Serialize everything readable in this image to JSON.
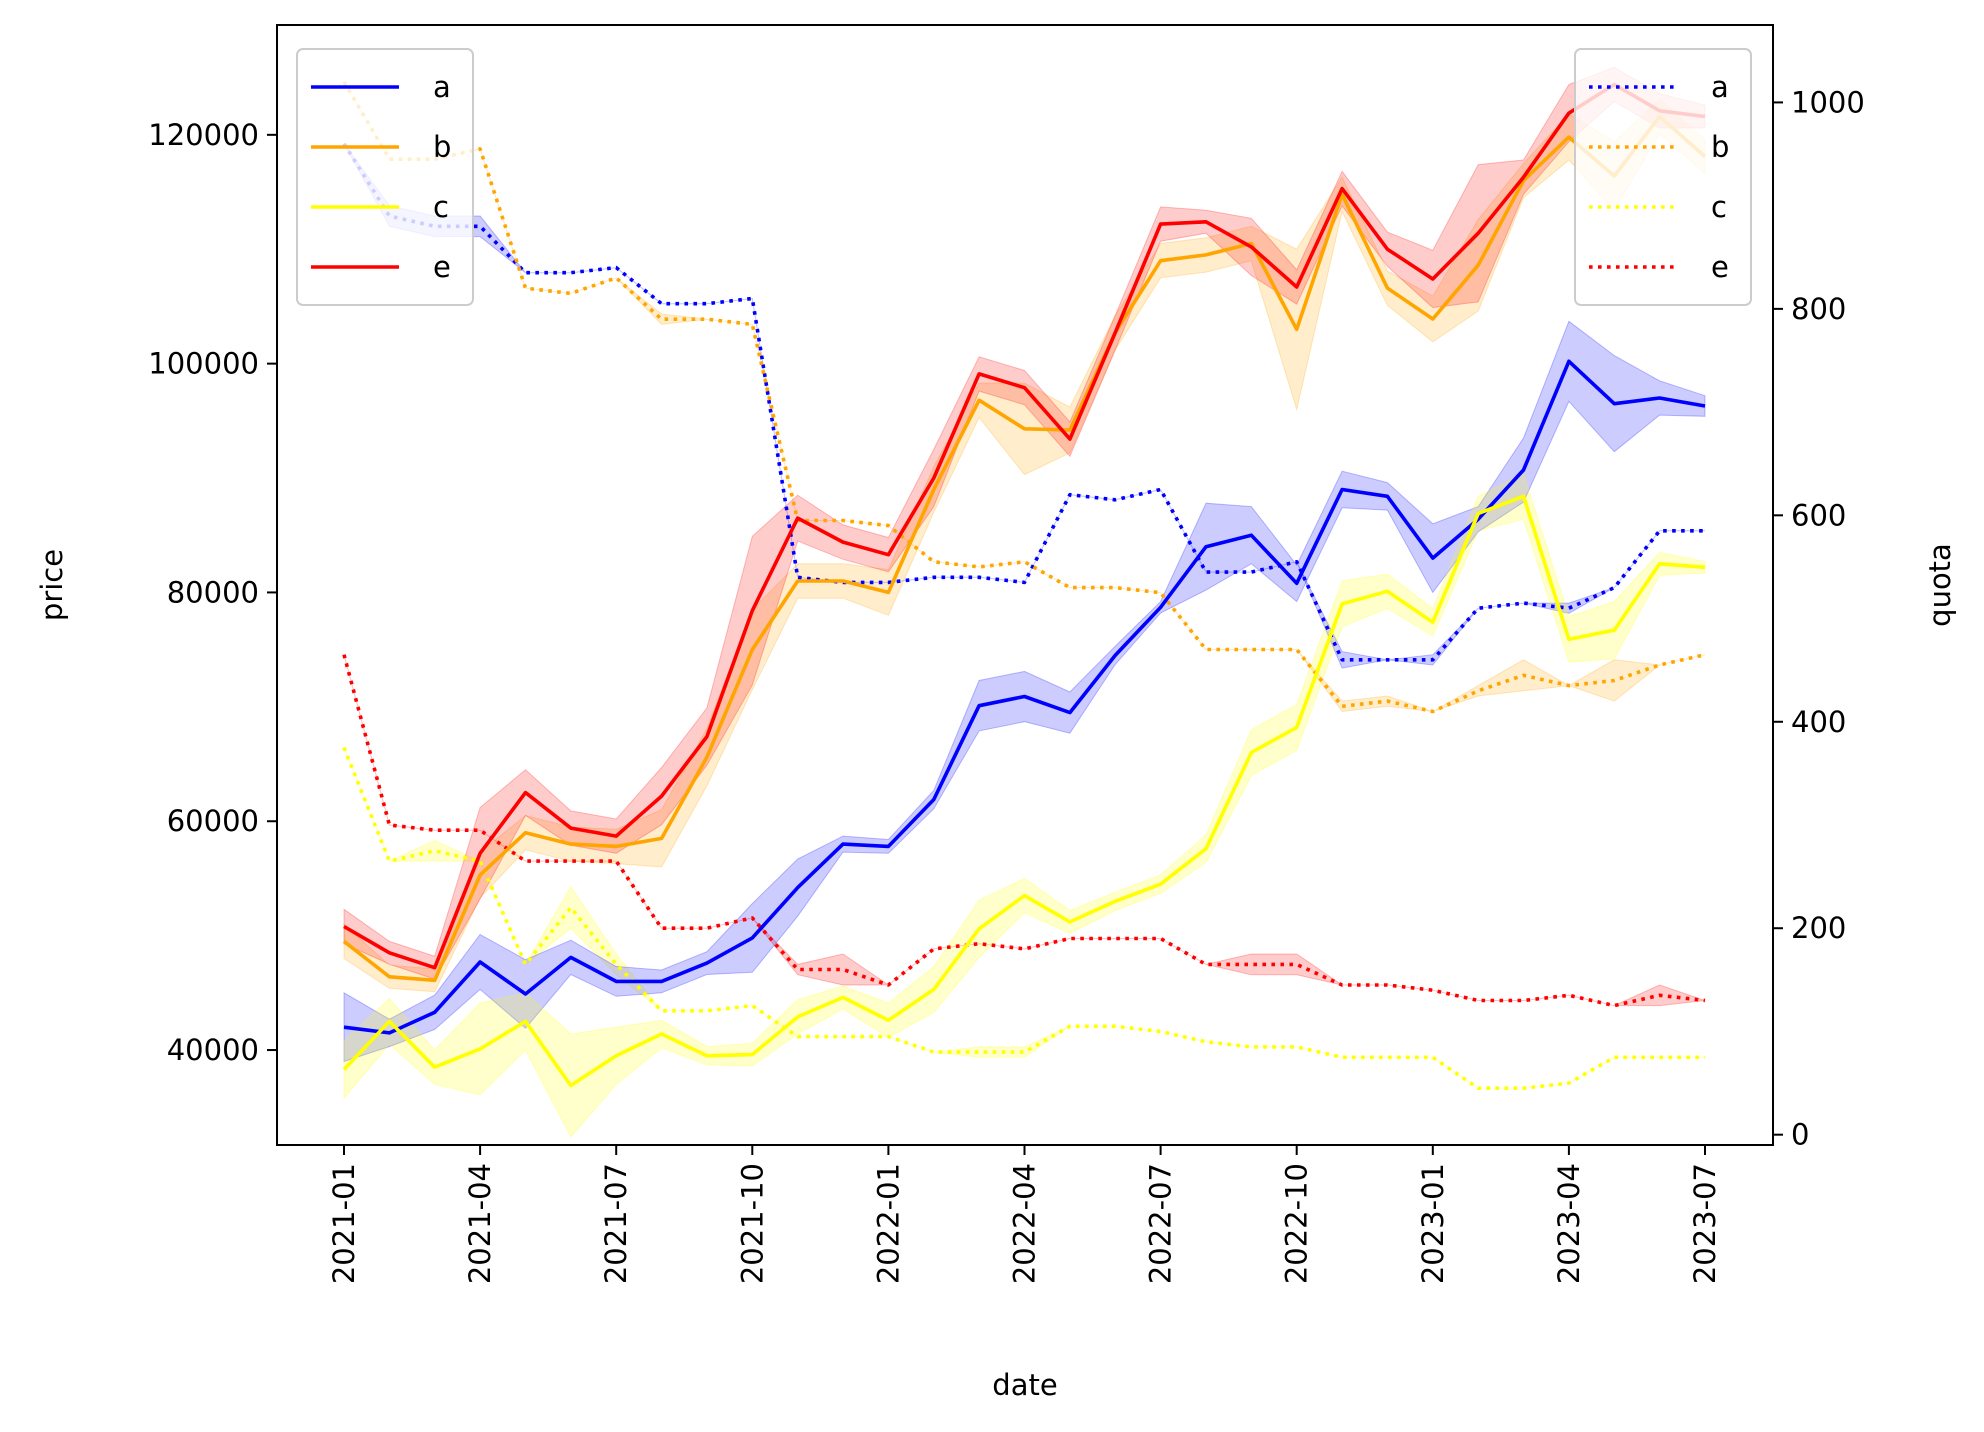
{
  "chart_data": {
    "type": "line",
    "x_dates": [
      "2021-01",
      "2021-02",
      "2021-03",
      "2021-04",
      "2021-05",
      "2021-06",
      "2021-07",
      "2021-08",
      "2021-09",
      "2021-10",
      "2021-11",
      "2021-12",
      "2022-01",
      "2022-02",
      "2022-03",
      "2022-04",
      "2022-05",
      "2022-06",
      "2022-07",
      "2022-08",
      "2022-09",
      "2022-10",
      "2022-11",
      "2022-12",
      "2023-01",
      "2023-02",
      "2023-03",
      "2023-04",
      "2023-05",
      "2023-06",
      "2023-07"
    ],
    "xticks": [
      "2021-01",
      "2021-04",
      "2021-07",
      "2021-10",
      "2022-01",
      "2022-04",
      "2022-07",
      "2022-10",
      "2023-01",
      "2023-04",
      "2023-07"
    ],
    "xlabel": "date",
    "ylabel_left": "price",
    "ylabel_right": "quota",
    "ylim_left": [
      31700,
      129600
    ],
    "ylim_right": [
      -10,
      1075
    ],
    "yticks_left": [
      40000,
      60000,
      80000,
      100000,
      120000
    ],
    "yticks_right": [
      0,
      200,
      400,
      600,
      800,
      1000
    ],
    "grid": false,
    "legend_left": {
      "placement": "upper left",
      "entries": [
        "a",
        "b",
        "c",
        "e"
      ]
    },
    "legend_right": {
      "placement": "upper right",
      "entries": [
        "a",
        "b",
        "c",
        "e"
      ]
    },
    "price_series": [
      {
        "name": "a",
        "color": "#0000ff",
        "values": [
          42000,
          41500,
          43300,
          47700,
          44900,
          48100,
          46000,
          46000,
          47600,
          49800,
          54200,
          58000,
          57800,
          61900,
          70100,
          70900,
          69500,
          74500,
          78700,
          84000,
          85000,
          80800,
          89000,
          88400,
          83000,
          86400,
          90700,
          100200,
          96500,
          97000,
          96300
        ],
        "band": [
          3000,
          1200,
          1500,
          2400,
          3000,
          1500,
          1300,
          1000,
          1000,
          3000,
          2500,
          700,
          600,
          800,
          2200,
          2200,
          1800,
          800,
          500,
          3800,
          2500,
          1600,
          1600,
          1200,
          3000,
          1100,
          2800,
          3500,
          4200,
          1500,
          900
        ]
      },
      {
        "name": "b",
        "color": "#ffa500",
        "values": [
          49500,
          46400,
          46100,
          55300,
          59000,
          58000,
          57800,
          58500,
          65600,
          75000,
          81000,
          81000,
          80000,
          89000,
          96800,
          94300,
          94200,
          102700,
          109000,
          109500,
          110500,
          103000,
          114800,
          106600,
          103900,
          108600,
          116000,
          119800,
          116400,
          121600,
          118100
        ],
        "band": [
          1500,
          1000,
          1000,
          2000,
          1500,
          1500,
          1500,
          2500,
          2500,
          3500,
          1500,
          1500,
          2000,
          2000,
          1500,
          4000,
          2000,
          1500,
          1500,
          1500,
          1500,
          7000,
          1500,
          1500,
          2000,
          4000,
          1500,
          2000,
          3000,
          1500,
          1500
        ]
      },
      {
        "name": "c",
        "color": "#ffff00",
        "values": [
          38300,
          42500,
          38500,
          40100,
          42500,
          36900,
          39500,
          41400,
          39500,
          39600,
          42900,
          44600,
          42600,
          45300,
          50600,
          53500,
          51200,
          53000,
          54500,
          57600,
          66000,
          68200,
          79000,
          80100,
          77400,
          86900,
          88400,
          75900,
          76700,
          82500,
          82200
        ],
        "band": [
          2500,
          2000,
          1500,
          4000,
          2500,
          4500,
          2500,
          1200,
          800,
          1000,
          1500,
          1000,
          1500,
          2000,
          2500,
          1500,
          1000,
          800,
          800,
          1200,
          2000,
          2000,
          2000,
          1500,
          1200,
          1500,
          2000,
          2000,
          2500,
          1000,
          500
        ]
      },
      {
        "name": "e",
        "color": "#ff0000",
        "values": [
          50800,
          48500,
          47200,
          57200,
          62500,
          59400,
          58700,
          62200,
          67400,
          78400,
          86500,
          84400,
          83300,
          90000,
          99100,
          97900,
          93400,
          102700,
          112200,
          112400,
          110200,
          106700,
          115300,
          110000,
          107400,
          111400,
          116300,
          121900,
          124400,
          122100,
          121600
        ],
        "band": [
          1500,
          1000,
          1000,
          4000,
          2000,
          1500,
          1500,
          2500,
          2500,
          6500,
          2000,
          1500,
          1500,
          2500,
          1500,
          1500,
          1500,
          1500,
          1500,
          1000,
          2500,
          1500,
          1500,
          1500,
          2500,
          6000,
          1500,
          2500,
          1500,
          1500,
          1000
        ]
      }
    ],
    "quota_series": [
      {
        "name": "a",
        "color": "#0000ff",
        "values": [
          960,
          890,
          880,
          880,
          835,
          835,
          840,
          805,
          805,
          810,
          540,
          535,
          535,
          540,
          540,
          535,
          620,
          615,
          625,
          545,
          545,
          555,
          460,
          460,
          460,
          510,
          515,
          510,
          530,
          585,
          585
        ],
        "band": [
          0,
          10,
          10,
          10,
          0,
          0,
          0,
          0,
          0,
          0,
          0,
          0,
          0,
          0,
          0,
          0,
          0,
          0,
          0,
          0,
          0,
          0,
          8,
          0,
          5,
          0,
          0,
          5,
          0,
          0,
          0
        ]
      },
      {
        "name": "b",
        "color": "#ffa500",
        "values": [
          1020,
          945,
          945,
          955,
          820,
          815,
          830,
          790,
          790,
          785,
          595,
          595,
          590,
          555,
          550,
          555,
          530,
          530,
          525,
          470,
          470,
          470,
          415,
          420,
          410,
          430,
          445,
          435,
          440,
          455,
          465
        ],
        "band": [
          0,
          0,
          0,
          0,
          0,
          0,
          0,
          5,
          0,
          0,
          0,
          0,
          0,
          0,
          0,
          0,
          0,
          0,
          0,
          0,
          0,
          0,
          5,
          5,
          0,
          5,
          15,
          0,
          20,
          0,
          0
        ]
      },
      {
        "name": "c",
        "color": "#ffff00",
        "values": [
          375,
          265,
          275,
          265,
          165,
          220,
          165,
          120,
          120,
          125,
          95,
          95,
          95,
          80,
          80,
          80,
          105,
          105,
          100,
          90,
          85,
          85,
          75,
          75,
          75,
          45,
          45,
          50,
          75,
          75,
          75
        ],
        "band": [
          0,
          0,
          10,
          0,
          0,
          20,
          10,
          0,
          0,
          0,
          0,
          0,
          0,
          0,
          5,
          5,
          0,
          0,
          0,
          0,
          0,
          0,
          0,
          0,
          0,
          0,
          0,
          0,
          0,
          0,
          0
        ]
      },
      {
        "name": "e",
        "color": "#ff0000",
        "values": [
          465,
          300,
          295,
          295,
          265,
          265,
          265,
          200,
          200,
          210,
          160,
          160,
          145,
          180,
          185,
          180,
          190,
          190,
          190,
          165,
          165,
          165,
          145,
          145,
          140,
          130,
          130,
          135,
          125,
          135,
          130
        ],
        "band": [
          0,
          0,
          0,
          0,
          0,
          0,
          0,
          0,
          0,
          0,
          5,
          15,
          0,
          0,
          0,
          0,
          0,
          0,
          0,
          0,
          10,
          10,
          0,
          0,
          0,
          0,
          0,
          0,
          0,
          10,
          0
        ]
      }
    ]
  }
}
